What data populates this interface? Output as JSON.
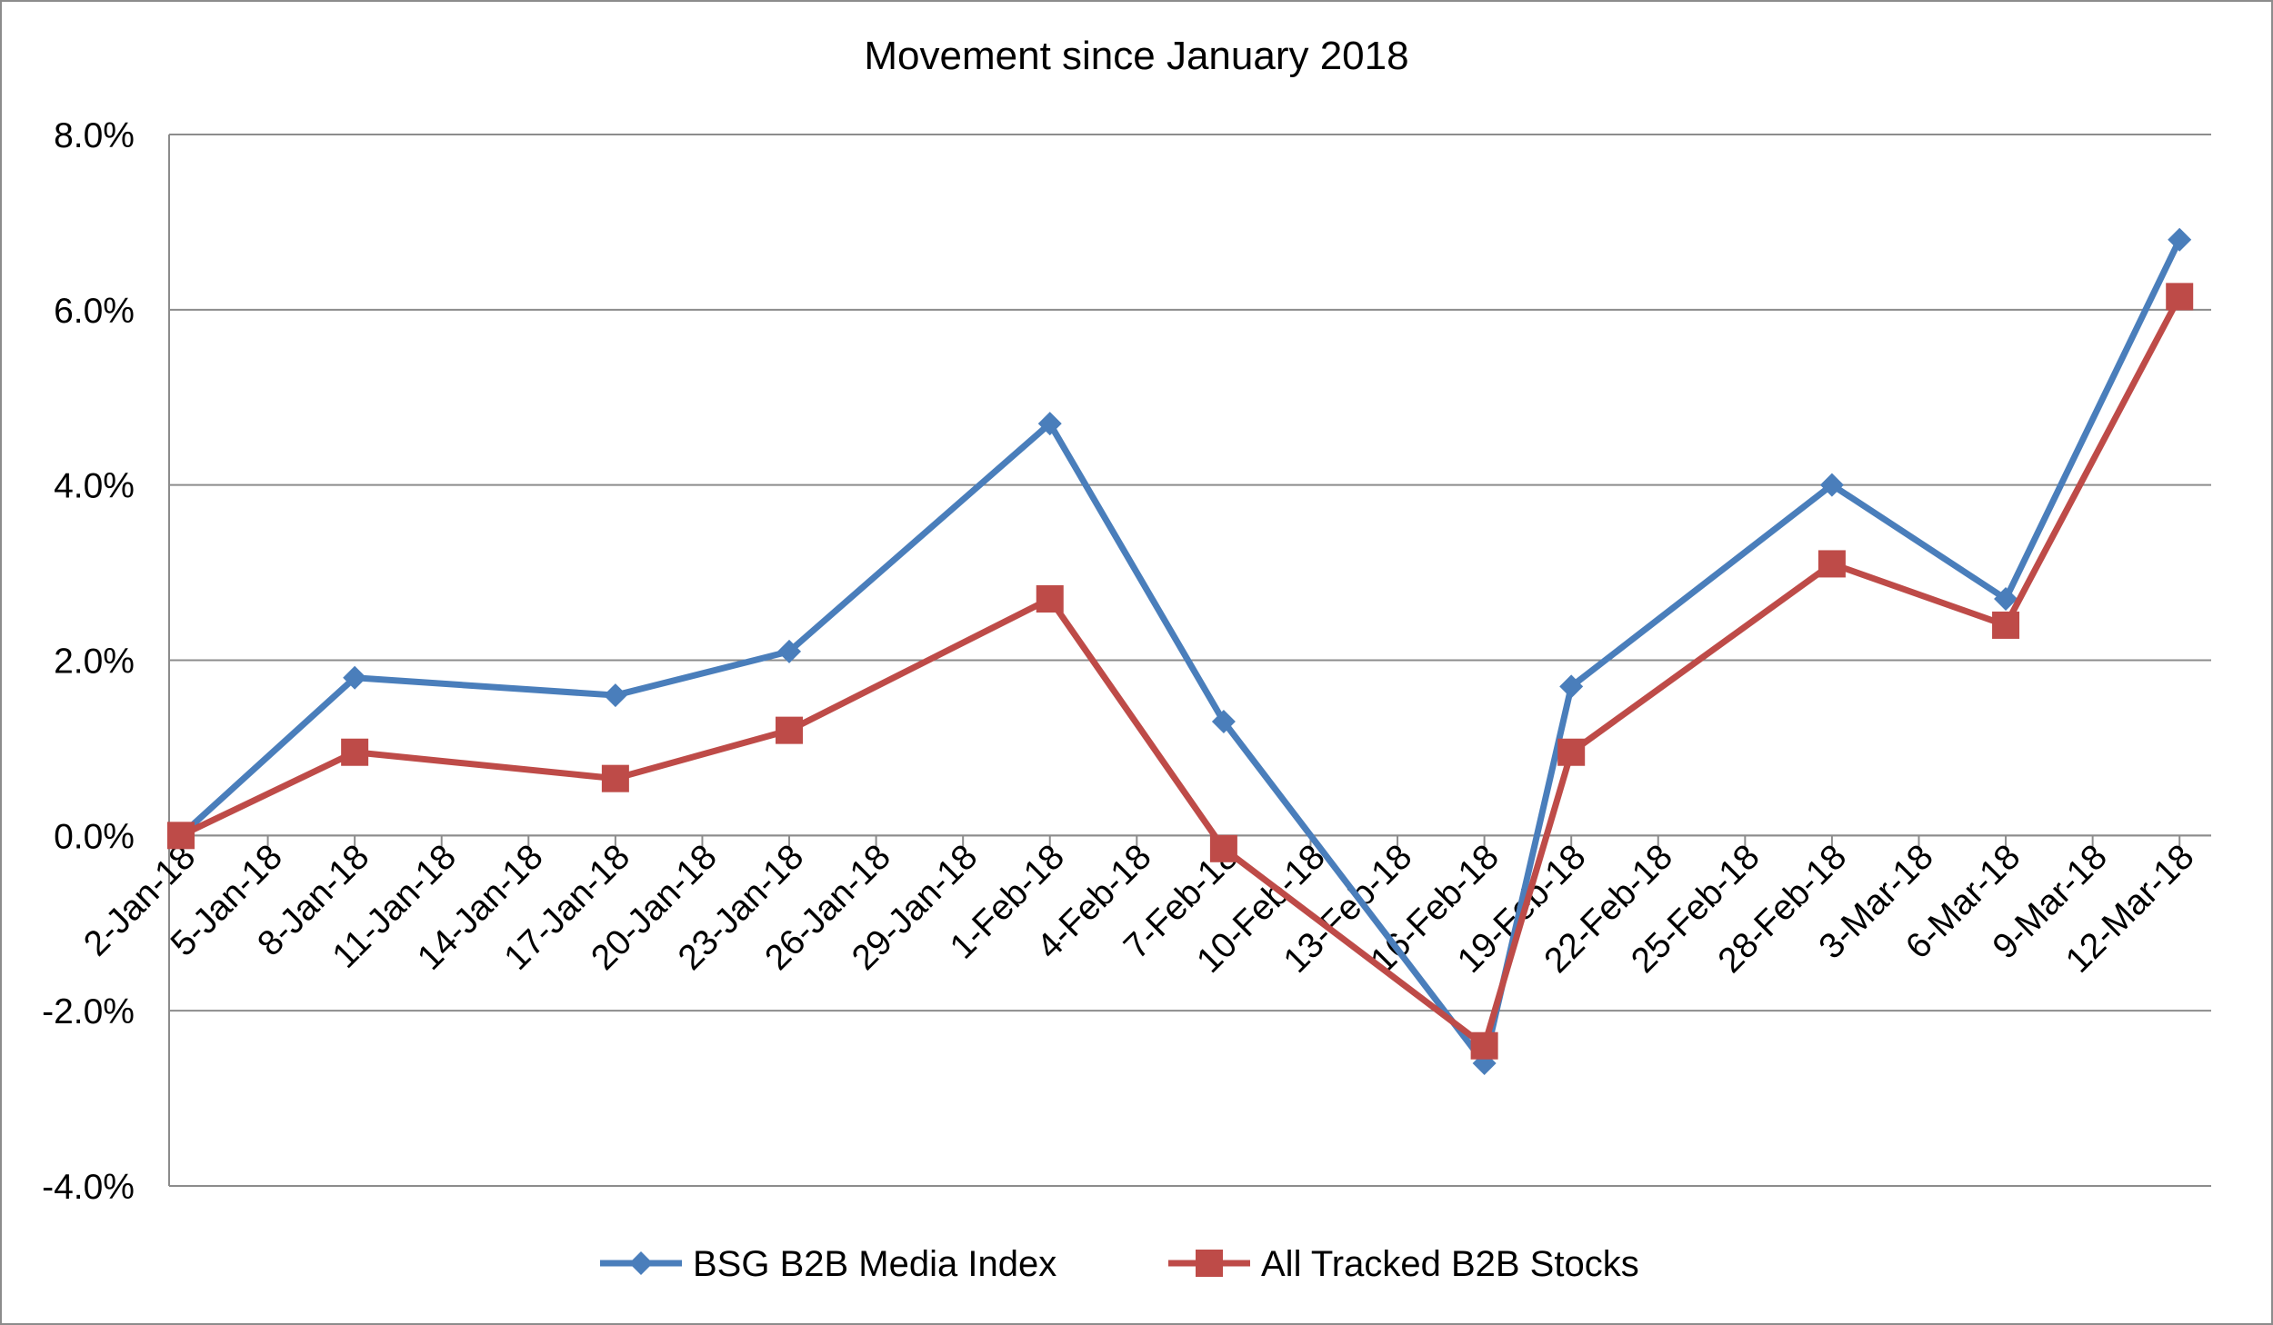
{
  "chart_data": {
    "type": "line",
    "title": "Movement since January 2018",
    "xlabel": "",
    "ylabel": "",
    "y_tick_format": "percent_1dp",
    "ylim": [
      -4.0,
      8.0
    ],
    "y_ticks": [
      -4.0,
      -2.0,
      0.0,
      2.0,
      4.0,
      6.0,
      8.0
    ],
    "y_tick_labels": [
      "-4.0%",
      "-2.0%",
      "0.0%",
      "2.0%",
      "4.0%",
      "6.0%",
      "8.0%"
    ],
    "x_tick_labels": [
      "2-Jan-18",
      "5-Jan-18",
      "8-Jan-18",
      "11-Jan-18",
      "14-Jan-18",
      "17-Jan-18",
      "20-Jan-18",
      "23-Jan-18",
      "26-Jan-18",
      "29-Jan-18",
      "1-Feb-18",
      "4-Feb-18",
      "7-Feb-18",
      "10-Feb-18",
      "13-Feb-18",
      "16-Feb-18",
      "19-Feb-18",
      "22-Feb-18",
      "25-Feb-18",
      "28-Feb-18",
      "3-Mar-18",
      "6-Mar-18",
      "9-Mar-18",
      "12-Mar-18"
    ],
    "grid": "horizontal",
    "legend_position": "bottom",
    "series": [
      {
        "name": "BSG B2B Media Index",
        "color": "#4a7ebb",
        "marker": "diamond",
        "points": [
          {
            "x": "2-Jan-18",
            "y": 0.0
          },
          {
            "x": "8-Jan-18",
            "y": 1.8
          },
          {
            "x": "17-Jan-18",
            "y": 1.6
          },
          {
            "x": "23-Jan-18",
            "y": 2.1
          },
          {
            "x": "1-Feb-18",
            "y": 4.7
          },
          {
            "x": "7-Feb-18",
            "y": 1.3
          },
          {
            "x": "16-Feb-18",
            "y": -2.6
          },
          {
            "x": "19-Feb-18",
            "y": 1.7
          },
          {
            "x": "28-Feb-18",
            "y": 4.0
          },
          {
            "x": "6-Mar-18",
            "y": 2.7
          },
          {
            "x": "12-Mar-18",
            "y": 6.8
          }
        ]
      },
      {
        "name": "All Tracked B2B Stocks",
        "color": "#be4b48",
        "marker": "square",
        "points": [
          {
            "x": "2-Jan-18",
            "y": 0.0
          },
          {
            "x": "8-Jan-18",
            "y": 0.95
          },
          {
            "x": "17-Jan-18",
            "y": 0.65
          },
          {
            "x": "23-Jan-18",
            "y": 1.2
          },
          {
            "x": "1-Feb-18",
            "y": 2.7
          },
          {
            "x": "7-Feb-18",
            "y": -0.15
          },
          {
            "x": "16-Feb-18",
            "y": -2.4
          },
          {
            "x": "19-Feb-18",
            "y": 0.95
          },
          {
            "x": "28-Feb-18",
            "y": 3.1
          },
          {
            "x": "6-Mar-18",
            "y": 2.4
          },
          {
            "x": "12-Mar-18",
            "y": 6.15
          }
        ]
      }
    ]
  }
}
